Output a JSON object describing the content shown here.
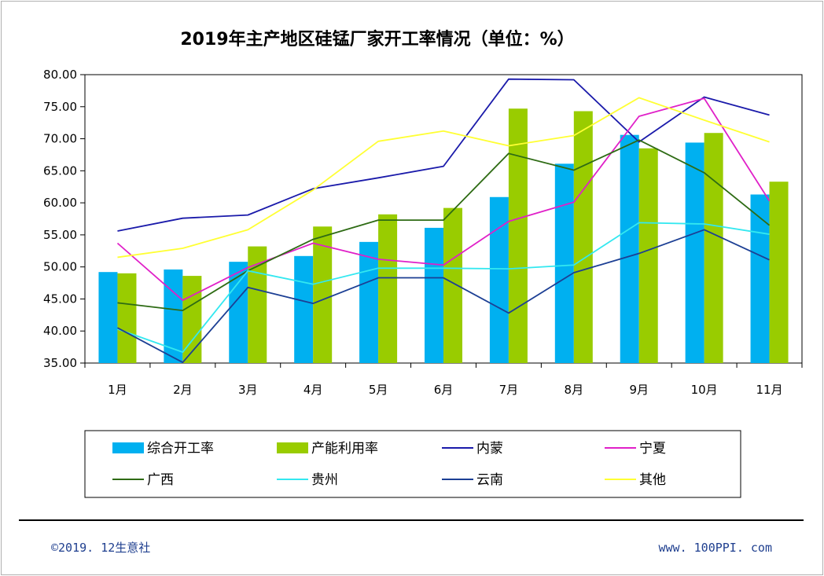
{
  "page": {
    "footer_left": "©2019. 12生意社",
    "footer_right": "www. 100PPI. com"
  },
  "chart_data": {
    "type": "bar",
    "title": "2019年主产地区硅锰厂家开工率情况（单位：%）",
    "xlabel": "",
    "ylabel": "",
    "ylim": [
      35,
      80
    ],
    "yticks": [
      "35.00",
      "40.00",
      "45.00",
      "50.00",
      "55.00",
      "60.00",
      "65.00",
      "70.00",
      "75.00",
      "80.00"
    ],
    "categories": [
      "1月",
      "2月",
      "3月",
      "4月",
      "5月",
      "6月",
      "7月",
      "8月",
      "9月",
      "10月",
      "11月"
    ],
    "bar_series": [
      {
        "name": "综合开工率",
        "color": "#00b0f0",
        "values": [
          49.2,
          49.6,
          50.8,
          51.7,
          53.9,
          56.1,
          60.9,
          66.1,
          70.6,
          69.4,
          61.3
        ]
      },
      {
        "name": "产能利用率",
        "color": "#99cc00",
        "values": [
          49.0,
          48.6,
          53.2,
          56.3,
          58.2,
          59.2,
          74.7,
          74.3,
          68.5,
          70.9,
          63.3
        ]
      }
    ],
    "line_series": [
      {
        "name": "内蒙",
        "color": "#1a1aaa",
        "values": [
          55.6,
          57.6,
          58.1,
          62.2,
          63.9,
          65.7,
          79.3,
          79.2,
          69.5,
          76.5,
          73.7
        ]
      },
      {
        "name": "宁夏",
        "color": "#e020c8",
        "values": [
          53.7,
          44.8,
          49.9,
          53.7,
          51.2,
          50.3,
          57.1,
          60.1,
          73.5,
          76.3,
          60.3
        ]
      },
      {
        "name": "广西",
        "color": "#2e6b14",
        "values": [
          44.4,
          43.2,
          49.4,
          54.3,
          57.3,
          57.3,
          67.7,
          65.1,
          69.8,
          64.7,
          56.5
        ]
      },
      {
        "name": "贵州",
        "color": "#33e8f0",
        "values": [
          40.3,
          36.7,
          49.4,
          47.3,
          49.8,
          49.8,
          49.7,
          50.3,
          56.9,
          56.7,
          55.1
        ]
      },
      {
        "name": "云南",
        "color": "#1c3f94",
        "values": [
          40.5,
          35.1,
          46.8,
          44.3,
          48.3,
          48.3,
          42.8,
          49.1,
          52.1,
          55.8,
          51.1
        ]
      },
      {
        "name": "其他",
        "color": "#ffff33",
        "values": [
          51.5,
          52.9,
          55.8,
          62.0,
          69.6,
          71.2,
          68.9,
          70.5,
          76.4,
          72.9,
          69.5
        ]
      }
    ],
    "legend": {
      "position": "bottom",
      "order": [
        "综合开工率",
        "产能利用率",
        "内蒙",
        "宁夏",
        "广西",
        "贵州",
        "云南",
        "其他"
      ]
    },
    "grid": false
  }
}
